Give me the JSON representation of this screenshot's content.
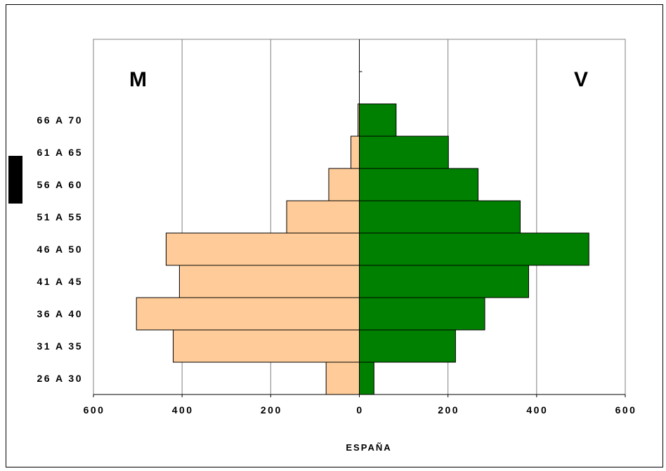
{
  "chart_data": {
    "type": "bar",
    "orientation": "horizontal",
    "layout": "population-pyramid",
    "categories": [
      "26 A 30",
      "31 A 35",
      "36 A 40",
      "41 A 45",
      "46 A 50",
      "51 A 55",
      "56 A 60",
      "61 A 65",
      "66 A 70"
    ],
    "series": [
      {
        "name": "M",
        "color": "#ffcc99",
        "side": "left",
        "values": [
          75,
          420,
          503,
          406,
          436,
          164,
          69,
          19,
          3
        ]
      },
      {
        "name": "V",
        "color": "#008000",
        "side": "right",
        "values": [
          33,
          217,
          283,
          382,
          518,
          363,
          268,
          201,
          83
        ]
      }
    ],
    "xticks": [
      "600",
      "400",
      "200",
      "0",
      "200",
      "400",
      "600"
    ],
    "xlim": [
      -600,
      600
    ],
    "xlabel": "ESPAÑA",
    "left_label": "M",
    "right_label": "V",
    "grid": "vertical",
    "axis_color": "#000000"
  }
}
